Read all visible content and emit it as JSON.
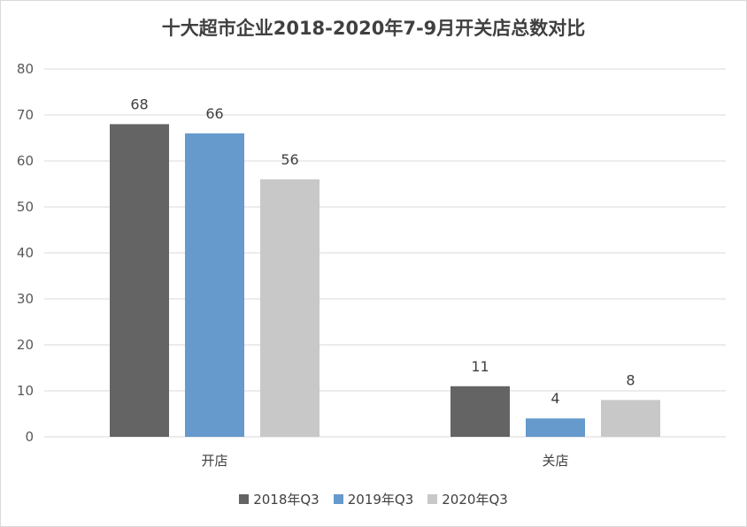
{
  "chart_data": {
    "type": "bar",
    "title": "十大超市企业2018-2020年7-9月开关店总数对比",
    "categories": [
      "开店",
      "关店"
    ],
    "series": [
      {
        "name": "2018年Q3",
        "values": [
          68,
          11
        ],
        "color": "#646464"
      },
      {
        "name": "2019年Q3",
        "values": [
          66,
          4
        ],
        "color": "#6699cc"
      },
      {
        "name": "2020年Q3",
        "values": [
          56,
          8
        ],
        "color": "#c8c8c8"
      }
    ],
    "ylim": [
      0,
      80
    ],
    "yticks": [
      0,
      10,
      20,
      30,
      40,
      50,
      60,
      70,
      80
    ],
    "grid": true,
    "legend_position": "bottom",
    "gridline_color": "#d9d9d9"
  }
}
